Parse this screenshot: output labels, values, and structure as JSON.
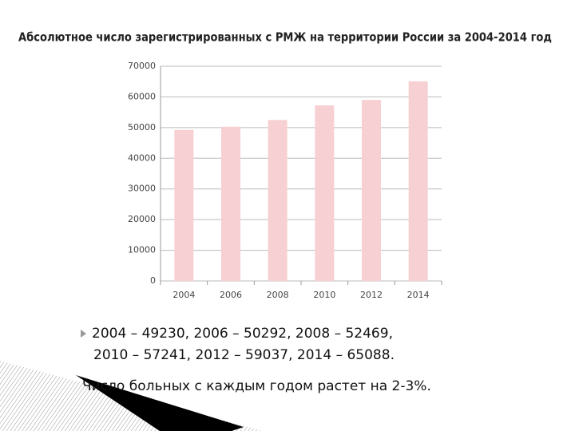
{
  "chart_data": {
    "type": "bar",
    "title": "Абсолютное число зарегистрированных с РМЖ на территории России за 2004-2014 год",
    "categories": [
      "2004",
      "2006",
      "2008",
      "2010",
      "2012",
      "2014"
    ],
    "values": [
      49230,
      50292,
      52469,
      57241,
      59037,
      65088
    ],
    "color": "#f6d0d2",
    "ylim": [
      0,
      70000
    ],
    "yticks": [
      0,
      10000,
      20000,
      30000,
      40000,
      50000,
      60000,
      70000
    ],
    "grid": true
  },
  "slide": {
    "bullet_lines": [
      "2004 – 49230,  2006 – 50292,  2008 – 52469,",
      "2010 – 57241,  2012 – 59037, 2014 – 65088."
    ],
    "note": "Число больных с каждым годом растет на 2-3%."
  }
}
